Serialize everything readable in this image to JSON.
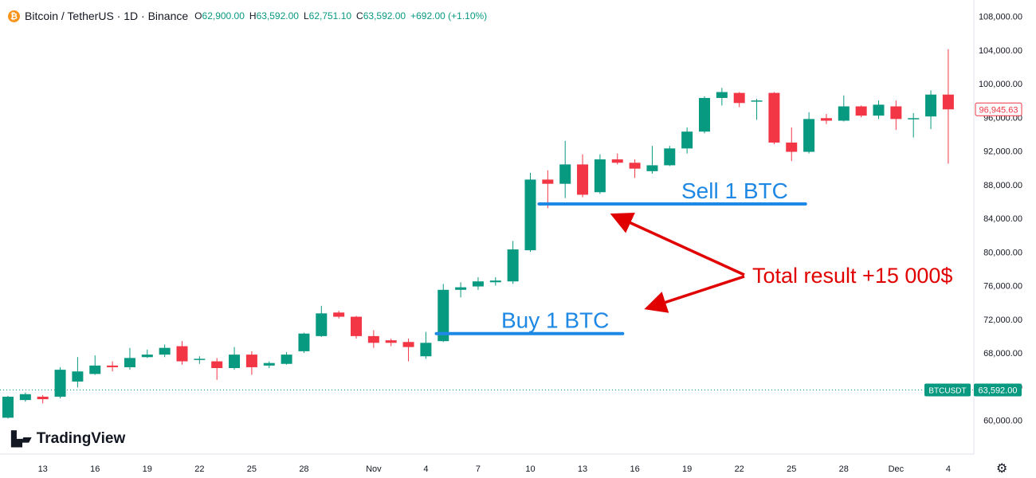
{
  "header": {
    "symbol": "Bitcoin / TetherUS · 1D · Binance",
    "coin_icon": "bitcoin-icon",
    "open_label": "O",
    "open": "62,900.00",
    "high_label": "H",
    "high": "63,592.00",
    "low_label": "L",
    "low": "62,751.10",
    "close_label": "C",
    "close": "63,592.00",
    "change": "+692.00 (+1.10%)"
  },
  "brand": {
    "name": "TradingView",
    "icon": "tradingview-logo-icon"
  },
  "settings_icon": "gear-icon",
  "colors": {
    "up": "#089981",
    "down": "#f23645",
    "annotation_blue": "#1e88e5",
    "annotation_red": "#e00000"
  },
  "chart_data": {
    "type": "candlestick",
    "y_axis": {
      "range": [
        58000,
        110000
      ],
      "ticks": [
        60000,
        64000,
        68000,
        72000,
        76000,
        80000,
        84000,
        88000,
        92000,
        96000,
        100000,
        104000,
        108000
      ],
      "tick_labels": [
        "60,000.00",
        "64,000.00",
        "68,000.00",
        "72,000.00",
        "76,000.00",
        "80,000.00",
        "84,000.00",
        "88,000.00",
        "92,000.00",
        "96,000.00",
        "100,000.00",
        "104,000.00",
        "108,000.00"
      ]
    },
    "x_ticks": [
      {
        "i": 2,
        "label": "13"
      },
      {
        "i": 5,
        "label": "16"
      },
      {
        "i": 8,
        "label": "19"
      },
      {
        "i": 11,
        "label": "22"
      },
      {
        "i": 14,
        "label": "25"
      },
      {
        "i": 17,
        "label": "28"
      },
      {
        "i": 21,
        "label": "Nov"
      },
      {
        "i": 24,
        "label": "4"
      },
      {
        "i": 27,
        "label": "7"
      },
      {
        "i": 30,
        "label": "10"
      },
      {
        "i": 33,
        "label": "13"
      },
      {
        "i": 36,
        "label": "16"
      },
      {
        "i": 39,
        "label": "19"
      },
      {
        "i": 42,
        "label": "22"
      },
      {
        "i": 45,
        "label": "25"
      },
      {
        "i": 48,
        "label": "28"
      },
      {
        "i": 51,
        "label": "Dec"
      },
      {
        "i": 54,
        "label": "4"
      }
    ],
    "candles": [
      [
        60300,
        62800,
        60200,
        62900
      ],
      [
        62400,
        63100,
        62200,
        63300
      ],
      [
        62800,
        62500,
        62000,
        63000
      ],
      [
        62800,
        66000,
        62600,
        66300
      ],
      [
        64600,
        65800,
        63900,
        67500
      ],
      [
        65500,
        66500,
        65400,
        67700
      ],
      [
        66500,
        66300,
        65800,
        67000
      ],
      [
        66300,
        67400,
        66000,
        68600
      ],
      [
        67500,
        67800,
        67400,
        68400
      ],
      [
        67800,
        68600,
        67500,
        69000
      ],
      [
        68800,
        67000,
        66600,
        69400
      ],
      [
        67200,
        67300,
        66700,
        67600
      ],
      [
        67000,
        66200,
        64800,
        67400
      ],
      [
        66200,
        67800,
        66000,
        68700
      ],
      [
        67800,
        66300,
        65400,
        68200
      ],
      [
        66500,
        66800,
        66200,
        67000
      ],
      [
        66700,
        67800,
        66600,
        68100
      ],
      [
        68200,
        70300,
        68000,
        70400
      ],
      [
        70000,
        72700,
        69900,
        73600
      ],
      [
        72800,
        72300,
        72100,
        73000
      ],
      [
        72300,
        70000,
        69700,
        72400
      ],
      [
        70000,
        69200,
        68600,
        70700
      ],
      [
        69500,
        69200,
        68800,
        69700
      ],
      [
        69300,
        68700,
        67000,
        69700
      ],
      [
        67600,
        69200,
        67300,
        70500
      ],
      [
        69400,
        75500,
        69300,
        76200
      ],
      [
        75500,
        75800,
        74600,
        76400
      ],
      [
        75900,
        76500,
        75500,
        77000
      ],
      [
        76400,
        76600,
        76000,
        77000
      ],
      [
        76500,
        80300,
        76200,
        81300
      ],
      [
        80200,
        88600,
        80000,
        89400
      ],
      [
        88600,
        88100,
        85200,
        89700
      ],
      [
        88100,
        90400,
        86400,
        93200
      ],
      [
        90400,
        86800,
        86500,
        91600
      ],
      [
        87100,
        91000,
        86900,
        91600
      ],
      [
        91000,
        90600,
        90400,
        91700
      ],
      [
        90600,
        89900,
        88800,
        91000
      ],
      [
        89600,
        90300,
        89300,
        92600
      ],
      [
        90300,
        92300,
        90200,
        92600
      ],
      [
        92300,
        94300,
        91700,
        94800
      ],
      [
        94300,
        98300,
        94100,
        98500
      ],
      [
        98300,
        99000,
        97400,
        99500
      ],
      [
        98900,
        97700,
        97200,
        99000
      ],
      [
        97900,
        98000,
        95700,
        98200
      ],
      [
        98900,
        93000,
        92800,
        99000
      ],
      [
        93000,
        91900,
        90800,
        94800
      ],
      [
        91900,
        95800,
        91700,
        96600
      ],
      [
        95900,
        95600,
        95200,
        96400
      ],
      [
        95600,
        97300,
        95500,
        98600
      ],
      [
        97300,
        96200,
        96000,
        97400
      ],
      [
        96200,
        97500,
        95800,
        98000
      ],
      [
        97300,
        95800,
        94500,
        98000
      ],
      [
        95800,
        95900,
        93600,
        96500
      ],
      [
        96100,
        98700,
        94600,
        99200
      ],
      [
        98700,
        96946,
        90500,
        104100
      ]
    ],
    "last_price": {
      "label": "96,945.63",
      "value": 96945.63,
      "color": "#f23645"
    },
    "symbol_price": {
      "symbol": "BTCUSDT",
      "label": "63,592.00",
      "value": 63592,
      "color": "#089981"
    },
    "annotations": {
      "buy": {
        "text": "Buy 1 BTC",
        "price": 70300,
        "from_i": 24.6,
        "to_i": 35.3
      },
      "sell": {
        "text": "Sell 1 BTC",
        "price": 85700,
        "from_i": 30.5,
        "to_i": 45.8
      },
      "result": {
        "text": "Total result +15 000$"
      }
    }
  }
}
